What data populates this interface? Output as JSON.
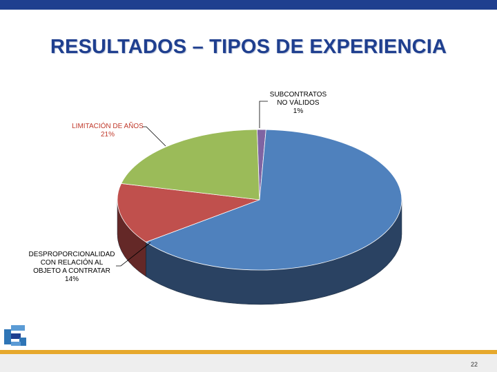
{
  "slide": {
    "title": "RESULTADOS – TIPOS DE EXPERIENCIA",
    "page_number": "22"
  },
  "colors": {
    "title": "#1f3f8f",
    "top_bar": "#1f3f8f",
    "footer_accent": "#e6a82c"
  },
  "chart_data": {
    "type": "pie",
    "title": "",
    "slices": [
      {
        "label_lines": [
          "SUBCONTRATOS",
          "NO VÁLIDOS",
          "1%"
        ],
        "value": 1,
        "color": "#8064a2",
        "side": "#4c3b62",
        "label_color": "#000000"
      },
      {
        "label_lines": [],
        "value": 64,
        "color": "#4f81bd",
        "side": "#2a4262",
        "label_color": "#000000"
      },
      {
        "label_lines": [
          "DESPROPORCIONALIDAD",
          "CON RELACIÓN AL",
          "OBJETO A CONTRATAR",
          "14%"
        ],
        "value": 14,
        "color": "#c0504d",
        "side": "#642827",
        "label_color": "#000000"
      },
      {
        "label_lines": [
          "LIMITACIÓN DE AÑOS",
          "21%"
        ],
        "value": 21,
        "color": "#9bbb59",
        "side": "#5b6e34",
        "label_color": "#c0392b"
      }
    ],
    "legend": "none"
  }
}
